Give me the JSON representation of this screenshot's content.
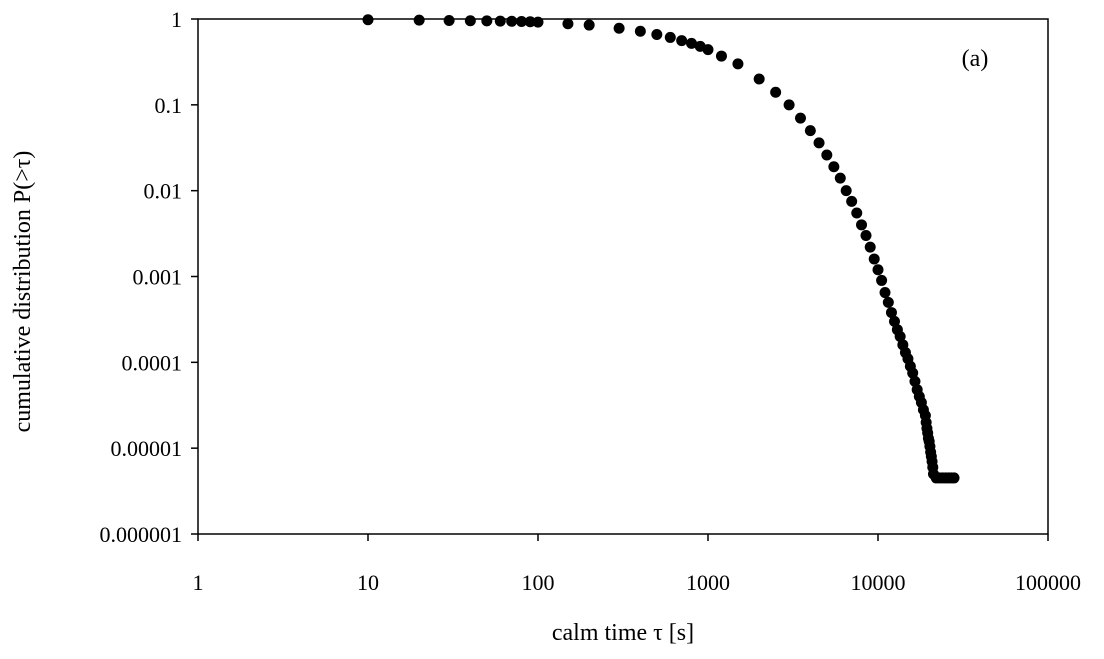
{
  "chart_data": {
    "type": "scatter",
    "title": "",
    "panel_label": "(a)",
    "xlabel": "calm time τ   [s]",
    "ylabel": "cumulative distribution P(>τ)",
    "x_scale": "log",
    "y_scale": "log",
    "xlim": [
      1,
      100000
    ],
    "ylim": [
      1e-06,
      1
    ],
    "x_ticks": [
      "1",
      "10",
      "100",
      "1000",
      "10000",
      "100000"
    ],
    "y_ticks": [
      "1",
      "0.1",
      "0.01",
      "0.001",
      "0.0001",
      "0.00001",
      "0.000001"
    ],
    "grid": false,
    "legend": "none",
    "marker_color": "#000000",
    "series": [
      {
        "x": [
          10,
          20,
          30,
          40,
          50,
          60,
          70,
          80,
          90,
          100,
          150,
          200,
          300,
          400,
          500,
          600,
          700,
          800,
          900,
          1000,
          1200,
          1500,
          2000,
          2500,
          3000,
          3500,
          4000,
          4500,
          5000,
          5500,
          6000,
          6500,
          7000,
          7500,
          8000,
          8500,
          9000,
          9500,
          10000,
          10500,
          11000,
          11500,
          12000,
          12500,
          13000,
          13500,
          14000,
          14500,
          15000,
          15500,
          16000,
          16500,
          17000,
          17500,
          18000,
          18500,
          19000,
          19200,
          19400,
          19600,
          19800,
          20000,
          20200,
          20400,
          20600,
          20800,
          21000,
          21200,
          22000,
          23000,
          24000,
          25000,
          26000,
          27000,
          28000
        ],
        "y": [
          0.98,
          0.97,
          0.96,
          0.955,
          0.95,
          0.945,
          0.94,
          0.935,
          0.93,
          0.92,
          0.88,
          0.85,
          0.78,
          0.72,
          0.66,
          0.61,
          0.56,
          0.52,
          0.48,
          0.44,
          0.37,
          0.3,
          0.2,
          0.14,
          0.1,
          0.07,
          0.05,
          0.036,
          0.026,
          0.019,
          0.014,
          0.01,
          0.0075,
          0.0055,
          0.004,
          0.003,
          0.0022,
          0.0016,
          0.0012,
          0.0009,
          0.00065,
          0.0005,
          0.00038,
          0.0003,
          0.00024,
          0.0002,
          0.00016,
          0.00013,
          0.00011,
          9e-05,
          7.5e-05,
          6e-05,
          4.8e-05,
          4e-05,
          3.4e-05,
          2.8e-05,
          2.4e-05,
          2e-05,
          1.7e-05,
          1.5e-05,
          1.3e-05,
          1.2e-05,
          1.05e-05,
          9e-06,
          8e-06,
          7e-06,
          6e-06,
          5e-06,
          4.5e-06,
          4.5e-06,
          4.5e-06,
          4.5e-06,
          4.5e-06,
          4.5e-06,
          4.5e-06
        ]
      }
    ]
  }
}
